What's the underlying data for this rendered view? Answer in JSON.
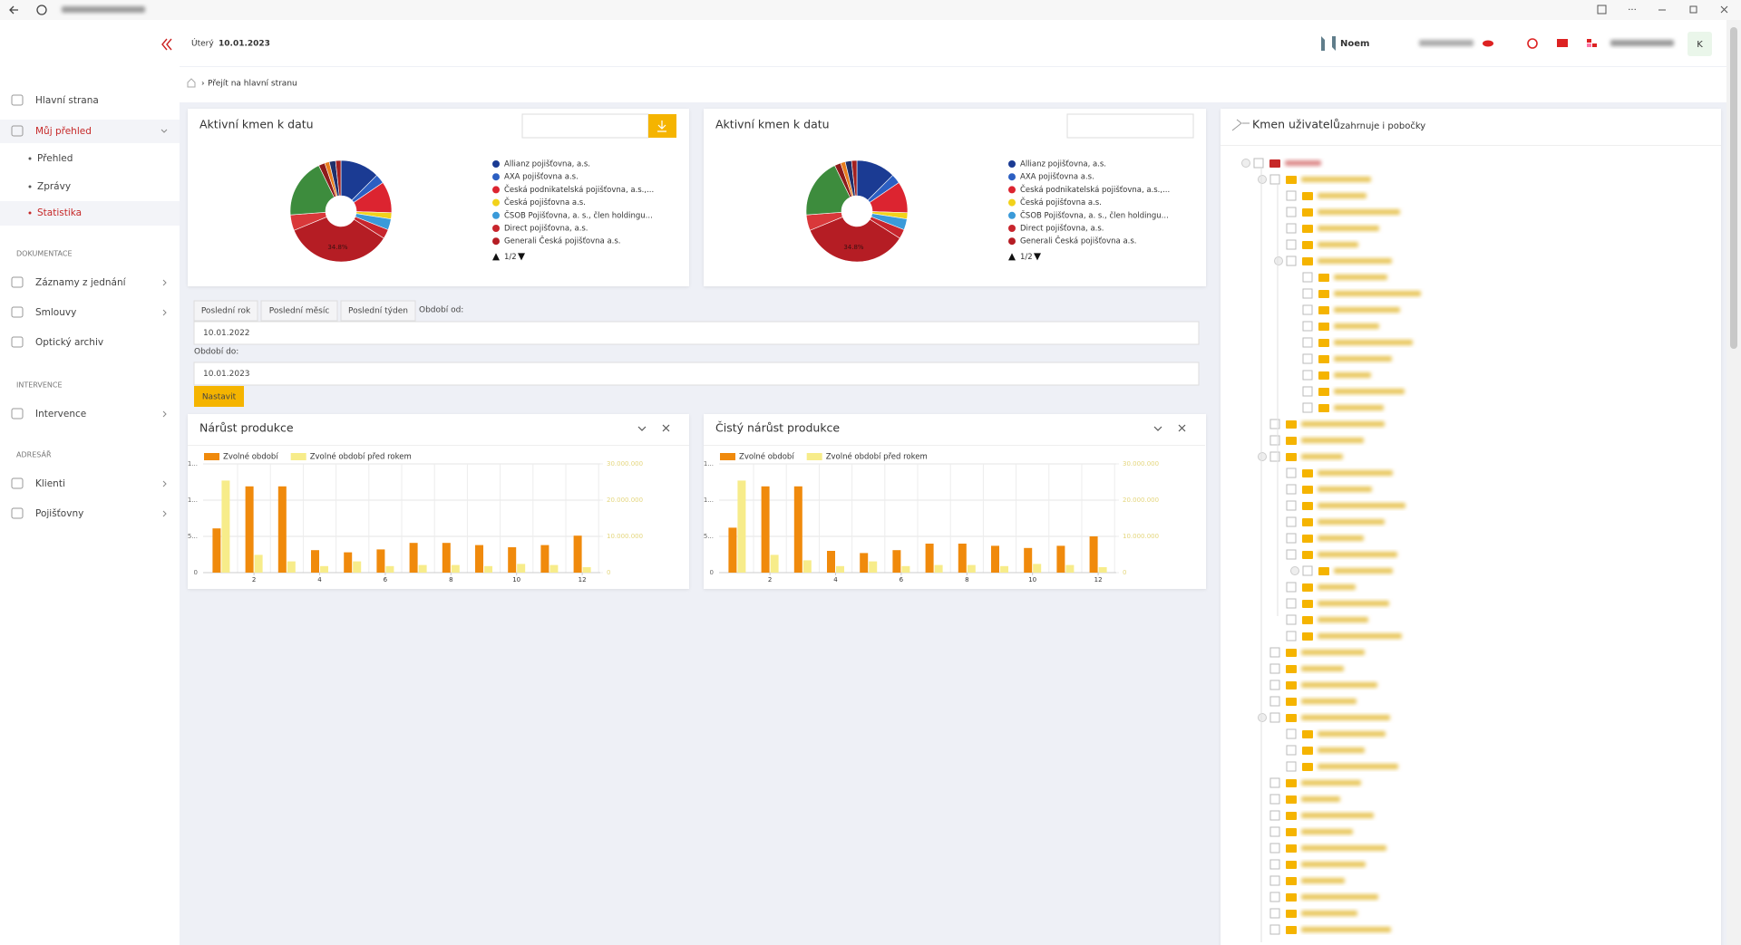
{
  "header": {
    "day": "Úterý",
    "date": "10.01.2023",
    "logo": "Noem",
    "avatar": "K"
  },
  "breadcrumb": "Přejít na hlavní stranu",
  "sidebar": {
    "main": [
      "Hlavní strana",
      "Můj přehled"
    ],
    "sub": [
      "Přehled",
      "Zprávy",
      "Statistika"
    ],
    "sections": [
      {
        "title": "DOKUMENTACE",
        "items": [
          "Záznamy z jednání",
          "Smlouvy",
          "Optický archiv"
        ]
      },
      {
        "title": "INTERVENCE",
        "items": [
          "Intervence"
        ]
      },
      {
        "title": "ADRESÁŘ",
        "items": [
          "Klienti",
          "Pojišťovny"
        ]
      }
    ]
  },
  "filters": {
    "buttons": [
      "Poslední rok",
      "Poslední měsíc",
      "Poslední týden"
    ],
    "from_label": "Období od:",
    "from": "10.01.2022",
    "to_label": "Období do:",
    "to": "10.01.2023",
    "submit": "Nastavit"
  },
  "tree": {
    "title": "Kmen uživatelů",
    "subtitle": "zahrnuje i pobočky"
  },
  "chart_data": [
    {
      "type": "pie",
      "title": "Aktivní kmen k datu",
      "pager": "1/2",
      "categories": [
        "Allianz pojišťovna, a.s.",
        "AXA pojišťovna a.s.",
        "Česká podnikatelská pojišťovna, a.s.,...",
        "Česká pojišťovna a.s.",
        "ČSOB Pojišťovna, a. s., člen holdingu...",
        "Direct pojišťovna, a.s.",
        "Generali Česká pojišťovna a.s.",
        null,
        null,
        null,
        null,
        null,
        null
      ],
      "values": [
        12.5,
        3,
        10,
        2,
        3.5,
        3,
        34.8,
        5,
        19,
        2,
        1.5,
        2,
        1.7
      ],
      "value_labels": [
        null,
        null,
        null,
        null,
        null,
        null,
        "34.8%",
        null,
        null,
        null,
        null,
        null,
        null
      ],
      "colors": [
        "#1b3b93",
        "#2c5fc2",
        "#dc2430",
        "#f2d21b",
        "#3a9ad9",
        "#c8252d",
        "#b51d24",
        "#d9383a",
        "#3d8c3d",
        "#8e1b1b",
        "#e87d1e",
        "#1f2f6b",
        "#a32020"
      ]
    },
    {
      "type": "pie",
      "title": "Aktivní kmen k datu",
      "pager": "1/2",
      "categories": [
        "Allianz pojišťovna, a.s.",
        "AXA pojišťovna a.s.",
        "Česká podnikatelská pojišťovna, a.s.,...",
        "Česká pojišťovna a.s.",
        "ČSOB Pojišťovna, a. s., člen holdingu...",
        "Direct pojišťovna, a.s.",
        "Generali Česká pojišťovna a.s.",
        null,
        null,
        null,
        null,
        null,
        null
      ],
      "values": [
        12.5,
        3,
        10,
        2,
        3.5,
        3,
        34.8,
        5,
        19,
        2,
        1.5,
        2,
        1.7
      ],
      "value_labels": [
        null,
        null,
        null,
        null,
        null,
        null,
        "34.8%",
        null,
        null,
        null,
        null,
        null,
        null
      ],
      "colors": [
        "#1b3b93",
        "#2c5fc2",
        "#dc2430",
        "#f2d21b",
        "#3a9ad9",
        "#c8252d",
        "#b51d24",
        "#d9383a",
        "#3d8c3d",
        "#8e1b1b",
        "#e87d1e",
        "#1f2f6b",
        "#a32020"
      ]
    },
    {
      "type": "bar",
      "title": "Nárůst produkce",
      "x": [
        1,
        2,
        3,
        4,
        5,
        6,
        7,
        8,
        9,
        10,
        11,
        12
      ],
      "xlim": [
        0.45,
        12.55
      ],
      "xticks": [
        2,
        4,
        6,
        8,
        10,
        12
      ],
      "ylim": [
        0,
        15000000
      ],
      "yticks": [
        0,
        {
          "value": 5000000,
          "label": "5..."
        },
        {
          "value": 10000000,
          "label": "1..."
        },
        {
          "value": 15000000,
          "label": "1..."
        }
      ],
      "y2lim": [
        0,
        30000000
      ],
      "y2ticks": [
        0,
        {
          "value": 10000000,
          "label": "10.000.000"
        },
        {
          "value": 20000000,
          "label": "20.000.000"
        },
        {
          "value": 30000000,
          "label": "30.000.000"
        }
      ],
      "grid": true,
      "series": [
        {
          "name": "Zvolné období",
          "color": "#f08a0c",
          "values": [
            6100000,
            11900000,
            11900000,
            3100000,
            2800000,
            3200000,
            4100000,
            4100000,
            3800000,
            3500000,
            3800000,
            5100000
          ]
        },
        {
          "name": "Zvolné období před rokem",
          "color": "#f7ec8a",
          "axis": "y2",
          "values": [
            25400000,
            4900000,
            3100000,
            1800000,
            3100000,
            1800000,
            2100000,
            2100000,
            1800000,
            2400000,
            2100000,
            1500000
          ]
        }
      ]
    },
    {
      "type": "bar",
      "title": "Čistý nárůst produkce",
      "x": [
        1,
        2,
        3,
        4,
        5,
        6,
        7,
        8,
        9,
        10,
        11,
        12
      ],
      "xlim": [
        0.45,
        12.55
      ],
      "xticks": [
        2,
        4,
        6,
        8,
        10,
        12
      ],
      "ylim": [
        0,
        15000000
      ],
      "yticks": [
        0,
        {
          "value": 5000000,
          "label": "5..."
        },
        {
          "value": 10000000,
          "label": "1..."
        },
        {
          "value": 15000000,
          "label": "1..."
        }
      ],
      "y2lim": [
        0,
        30000000
      ],
      "y2ticks": [
        0,
        {
          "value": 10000000,
          "label": "10.000.000"
        },
        {
          "value": 20000000,
          "label": "20.000.000"
        },
        {
          "value": 30000000,
          "label": "30.000.000"
        }
      ],
      "grid": true,
      "series": [
        {
          "name": "Zvolné období",
          "color": "#f08a0c",
          "values": [
            6200000,
            11900000,
            11900000,
            3000000,
            2700000,
            3100000,
            4000000,
            4000000,
            3700000,
            3400000,
            3700000,
            5000000
          ]
        },
        {
          "name": "Zvolné období před rokem",
          "color": "#f7ec8a",
          "axis": "y2",
          "values": [
            25400000,
            4900000,
            3400000,
            1800000,
            3100000,
            1800000,
            2100000,
            2100000,
            1800000,
            2400000,
            2100000,
            1500000
          ]
        }
      ]
    }
  ]
}
